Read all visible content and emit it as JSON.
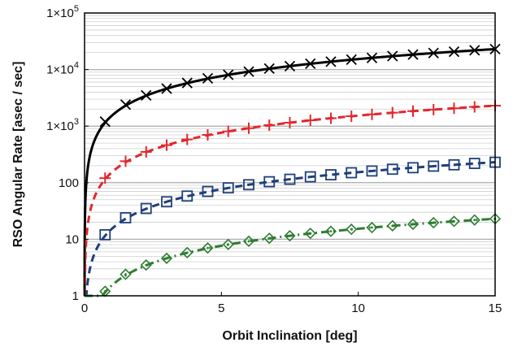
{
  "chart_data": {
    "type": "line",
    "title": "",
    "xlabel": "Orbit Inclination [deg]",
    "ylabel": "RSO Angular Rate [asec / sec]",
    "xlim": [
      0,
      15
    ],
    "ylim": [
      1,
      100000
    ],
    "yscale": "log",
    "grid": "horizontal minor log gridlines",
    "legend": "none",
    "x_ticks": [
      0,
      5,
      10,
      15
    ],
    "x_tick_labels": [
      "0",
      "5",
      "10",
      "15"
    ],
    "y_ticks": [
      1,
      10,
      100,
      1000,
      10000,
      100000
    ],
    "y_tick_labels": [
      {
        "base": "1"
      },
      {
        "base": "10"
      },
      {
        "base": "100"
      },
      {
        "base": "1×10",
        "exp": "3"
      },
      {
        "base": "1×10",
        "exp": "4"
      },
      {
        "base": "1×10",
        "exp": "5"
      }
    ],
    "marker_x": [
      0.75,
      1.5,
      2.25,
      3.0,
      3.75,
      4.5,
      5.25,
      6.0,
      6.75,
      7.5,
      8.25,
      9.0,
      9.75,
      10.5,
      11.25,
      12.0,
      12.75,
      13.5,
      14.25,
      15.0
    ],
    "series": [
      {
        "color": "#000000",
        "line": "solid",
        "marker": "x",
        "values": [
          1200,
          2400,
          3500,
          4600,
          5800,
          7000,
          8100,
          9200,
          10400,
          11500,
          12700,
          13800,
          15000,
          16100,
          17300,
          18400,
          19600,
          20700,
          21900,
          23000
        ]
      },
      {
        "color": "#e0282e",
        "line": "dashed",
        "marker": "+",
        "values": [
          120,
          240,
          350,
          460,
          580,
          700,
          810,
          920,
          1040,
          1150,
          1270,
          1380,
          1500,
          1610,
          1730,
          1840,
          1960,
          2070,
          2190,
          2300
        ]
      },
      {
        "color": "#1f3f7a",
        "line": "dashed",
        "marker": "square",
        "values": [
          12,
          24,
          35,
          46,
          58,
          70,
          81,
          92,
          104,
          115,
          127,
          138,
          150,
          161,
          173,
          184,
          196,
          207,
          219,
          230
        ]
      },
      {
        "color": "#2e7d32",
        "line": "dash-dot",
        "marker": "diamond-dot",
        "values": [
          1.2,
          2.4,
          3.5,
          4.6,
          5.8,
          7.0,
          8.1,
          9.2,
          10.4,
          11.5,
          12.7,
          13.8,
          15.0,
          16.1,
          17.3,
          18.4,
          19.6,
          20.7,
          21.9,
          23.0
        ]
      }
    ]
  }
}
